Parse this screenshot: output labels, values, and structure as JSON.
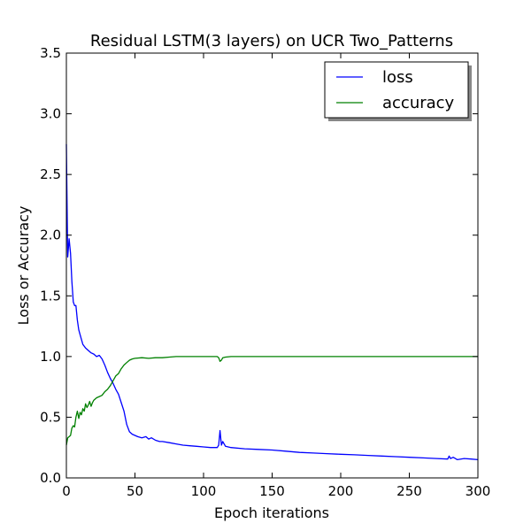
{
  "chart_data": {
    "type": "line",
    "title": "Residual LSTM(3 layers) on UCR Two_Patterns",
    "xlabel": "Epoch iterations",
    "ylabel": "Loss or Accuracy",
    "xlim": [
      0,
      300
    ],
    "ylim": [
      0,
      3.5
    ],
    "xticks": [
      "0",
      "50",
      "100",
      "150",
      "200",
      "250",
      "300"
    ],
    "yticks": [
      "0.0",
      "0.5",
      "1.0",
      "1.5",
      "2.0",
      "2.5",
      "3.0",
      "3.5"
    ],
    "grid": false,
    "legend_position": "top-right",
    "series": [
      {
        "name": "loss",
        "color": "#0000ff",
        "x": [
          0,
          1,
          2,
          3,
          4,
          5,
          6,
          7,
          8,
          9,
          10,
          12,
          14,
          16,
          18,
          20,
          22,
          24,
          26,
          28,
          30,
          32,
          34,
          36,
          38,
          40,
          42,
          44,
          46,
          48,
          50,
          52,
          55,
          58,
          60,
          62,
          65,
          68,
          70,
          75,
          80,
          85,
          90,
          95,
          100,
          105,
          110,
          111,
          112,
          113,
          114,
          116,
          120,
          130,
          140,
          150,
          160,
          170,
          180,
          190,
          200,
          210,
          220,
          230,
          240,
          250,
          260,
          270,
          278,
          279,
          280,
          282,
          285,
          290,
          295,
          300
        ],
        "values": [
          2.75,
          1.82,
          1.97,
          1.85,
          1.62,
          1.45,
          1.42,
          1.42,
          1.3,
          1.22,
          1.18,
          1.1,
          1.07,
          1.05,
          1.03,
          1.02,
          1.0,
          1.01,
          0.98,
          0.93,
          0.87,
          0.82,
          0.78,
          0.73,
          0.69,
          0.62,
          0.55,
          0.44,
          0.38,
          0.36,
          0.35,
          0.34,
          0.33,
          0.34,
          0.32,
          0.33,
          0.31,
          0.3,
          0.3,
          0.29,
          0.28,
          0.27,
          0.265,
          0.26,
          0.255,
          0.25,
          0.25,
          0.27,
          0.39,
          0.27,
          0.3,
          0.26,
          0.25,
          0.24,
          0.235,
          0.23,
          0.22,
          0.21,
          0.205,
          0.2,
          0.195,
          0.19,
          0.185,
          0.18,
          0.175,
          0.17,
          0.165,
          0.16,
          0.155,
          0.18,
          0.16,
          0.17,
          0.15,
          0.16,
          0.155,
          0.15
        ]
      },
      {
        "name": "accuracy",
        "color": "#008000",
        "x": [
          0,
          1,
          2,
          3,
          4,
          5,
          6,
          7,
          8,
          9,
          10,
          11,
          12,
          13,
          14,
          15,
          16,
          17,
          18,
          19,
          20,
          22,
          24,
          26,
          28,
          30,
          32,
          34,
          36,
          38,
          40,
          42,
          44,
          46,
          48,
          50,
          55,
          60,
          65,
          70,
          75,
          80,
          90,
          100,
          105,
          110,
          111,
          112,
          113,
          114,
          116,
          120,
          130,
          140,
          150,
          200,
          250,
          300
        ],
        "values": [
          0.27,
          0.33,
          0.34,
          0.35,
          0.41,
          0.43,
          0.42,
          0.5,
          0.55,
          0.49,
          0.54,
          0.52,
          0.57,
          0.55,
          0.61,
          0.58,
          0.6,
          0.63,
          0.59,
          0.62,
          0.64,
          0.66,
          0.67,
          0.68,
          0.71,
          0.73,
          0.76,
          0.8,
          0.84,
          0.86,
          0.9,
          0.93,
          0.95,
          0.97,
          0.98,
          0.985,
          0.99,
          0.985,
          0.99,
          0.99,
          0.995,
          1.0,
          1.0,
          1.0,
          1.0,
          1.0,
          0.99,
          0.96,
          0.97,
          0.99,
          0.995,
          1.0,
          1.0,
          1.0,
          1.0,
          1.0,
          1.0,
          1.0
        ]
      }
    ]
  }
}
